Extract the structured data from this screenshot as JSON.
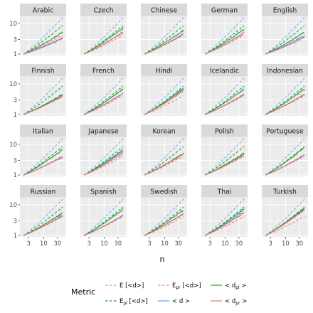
{
  "chart_data": {
    "type": "line",
    "xlabel": "n",
    "ylabel": "",
    "x_scale": "log",
    "y_scale": "log",
    "xlim": [
      1.5,
      60
    ],
    "ylim": [
      0.9,
      17
    ],
    "x_ticks": [
      3,
      10,
      30
    ],
    "y_ticks": [
      1,
      3,
      10
    ],
    "grid": true,
    "legend": {
      "title": "Metric",
      "placement": "bottom",
      "entries": [
        {
          "key": "E_d",
          "label": "E [<d>]",
          "main": "E [<d>]",
          "sub": "",
          "tail": "",
          "color": "#7aaef5",
          "dash": "dashed"
        },
        {
          "key": "Epl_d",
          "label": "E_pl [<d>]",
          "main": "E",
          "sub": "pl",
          "tail": " [<d>]",
          "color": "#1a9e3a",
          "dash": "dashed"
        },
        {
          "key": "Epr_d",
          "label": "E_pr [<d>]",
          "main": "E",
          "sub": "pr",
          "tail": " [<d>]",
          "color": "#f08078",
          "dash": "dashed"
        },
        {
          "key": "d",
          "label": "< d >",
          "main": "< d >",
          "sub": "",
          "tail": "",
          "color": "#5b9bf5",
          "dash": "solid"
        },
        {
          "key": "d_pl",
          "label": "< d_pl >",
          "main": "< d",
          "sub": "pl",
          "tail": " >",
          "color": "#1a9e3a",
          "dash": "solid"
        },
        {
          "key": "d_pr",
          "label": "< d_pr >",
          "main": "< d",
          "sub": "pr",
          "tail": " >",
          "color": "#e8776f",
          "dash": "solid"
        }
      ]
    },
    "panels": [
      {
        "name": "Arabic",
        "coef": {
          "E_d": 1.0,
          "Epl_d": 0.78,
          "Epr_d": 0.52,
          "d": 0.42,
          "d_pl": 0.6,
          "d_pr": 0.45
        }
      },
      {
        "name": "Czech",
        "coef": {
          "E_d": 1.0,
          "Epl_d": 0.78,
          "Epr_d": 0.52,
          "d": 0.6,
          "d_pl": 0.72,
          "d_pr": 0.6
        }
      },
      {
        "name": "Chinese",
        "coef": {
          "E_d": 1.0,
          "Epl_d": 0.78,
          "Epr_d": 0.52,
          "d": 0.55,
          "d_pl": 0.65,
          "d_pr": 0.55
        }
      },
      {
        "name": "German",
        "coef": {
          "E_d": 1.0,
          "Epl_d": 0.78,
          "Epr_d": 0.52,
          "d": 0.58,
          "d_pl": 0.68,
          "d_pr": 0.58
        }
      },
      {
        "name": "English",
        "coef": {
          "E_d": 1.0,
          "Epl_d": 0.78,
          "Epr_d": 0.52,
          "d": 0.5,
          "d_pl": 0.6,
          "d_pr": 0.45
        }
      },
      {
        "name": "Finnish",
        "coef": {
          "E_d": 1.0,
          "Epl_d": 0.78,
          "Epr_d": 0.52,
          "d": 0.55,
          "d_pl": 0.55,
          "d_pr": 0.5
        }
      },
      {
        "name": "French",
        "coef": {
          "E_d": 1.0,
          "Epl_d": 0.78,
          "Epr_d": 0.52,
          "d": 0.58,
          "d_pl": 0.7,
          "d_pr": 0.58
        }
      },
      {
        "name": "Hindi",
        "coef": {
          "E_d": 1.0,
          "Epl_d": 0.78,
          "Epr_d": 0.52,
          "d": 0.7,
          "d_pl": 0.72,
          "d_pr": 0.65
        }
      },
      {
        "name": "Icelandic",
        "coef": {
          "E_d": 1.0,
          "Epl_d": 0.78,
          "Epr_d": 0.52,
          "d": 0.55,
          "d_pl": 0.7,
          "d_pr": 0.55
        }
      },
      {
        "name": "Indonesian",
        "coef": {
          "E_d": 1.0,
          "Epl_d": 0.78,
          "Epr_d": 0.52,
          "d": 0.55,
          "d_pl": 0.7,
          "d_pr": 0.55
        }
      },
      {
        "name": "Italian",
        "coef": {
          "E_d": 1.0,
          "Epl_d": 0.78,
          "Epr_d": 0.52,
          "d": 0.5,
          "d_pl": 0.7,
          "d_pr": 0.5
        }
      },
      {
        "name": "Japanese",
        "coef": {
          "E_d": 1.0,
          "Epl_d": 0.78,
          "Epr_d": 0.52,
          "d": 0.65,
          "d_pl": 0.7,
          "d_pr": 0.6
        }
      },
      {
        "name": "Korean",
        "coef": {
          "E_d": 1.0,
          "Epl_d": 0.78,
          "Epr_d": 0.52,
          "d": 0.58,
          "d_pl": 0.6,
          "d_pr": 0.58
        }
      },
      {
        "name": "Polish",
        "coef": {
          "E_d": 1.0,
          "Epl_d": 0.78,
          "Epr_d": 0.52,
          "d": 0.55,
          "d_pl": 0.6,
          "d_pr": 0.55
        }
      },
      {
        "name": "Portuguese",
        "coef": {
          "E_d": 1.0,
          "Epl_d": 0.78,
          "Epr_d": 0.52,
          "d": 0.55,
          "d_pl": 0.75,
          "d_pr": 0.55
        }
      },
      {
        "name": "Russian",
        "coef": {
          "E_d": 1.0,
          "Epl_d": 0.78,
          "Epr_d": 0.52,
          "d": 0.55,
          "d_pl": 0.62,
          "d_pr": 0.55
        }
      },
      {
        "name": "Spanish",
        "coef": {
          "E_d": 1.0,
          "Epl_d": 0.78,
          "Epr_d": 0.52,
          "d": 0.55,
          "d_pl": 0.72,
          "d_pr": 0.55
        }
      },
      {
        "name": "Swedish",
        "coef": {
          "E_d": 1.0,
          "Epl_d": 0.78,
          "Epr_d": 0.52,
          "d": 0.6,
          "d_pl": 0.7,
          "d_pr": 0.6
        }
      },
      {
        "name": "Thai",
        "coef": {
          "E_d": 1.0,
          "Epl_d": 0.78,
          "Epr_d": 0.52,
          "d": 0.65,
          "d_pl": 0.72,
          "d_pr": 0.62
        }
      },
      {
        "name": "Turkish",
        "coef": {
          "E_d": 1.0,
          "Epl_d": 0.78,
          "Epr_d": 0.52,
          "d": 0.72,
          "d_pl": 0.75,
          "d_pr": 0.7
        }
      }
    ],
    "n_range": [
      2,
      45
    ]
  }
}
